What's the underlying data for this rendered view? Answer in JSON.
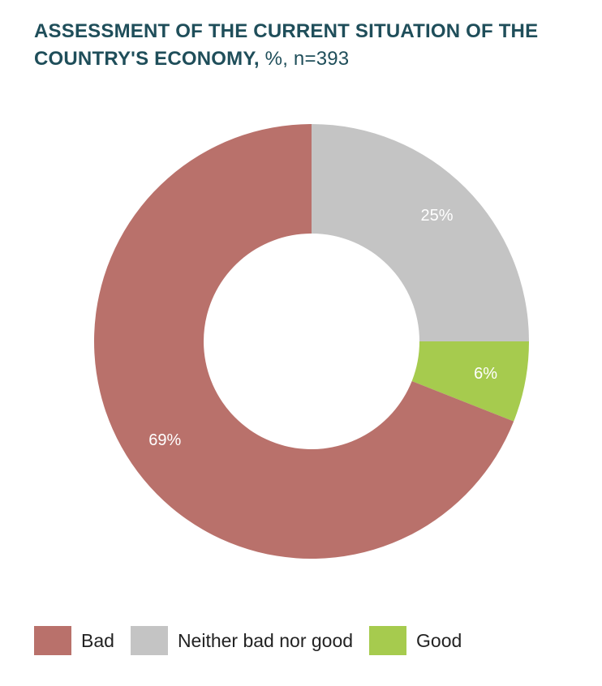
{
  "title": {
    "bold": "ASSESSMENT OF THE CURRENT SITUATION OF THE COUNTRY'S ECONOMY,",
    "rest": " %, n=393"
  },
  "chart_data": {
    "type": "pie",
    "donut": true,
    "title": "ASSESSMENT OF THE CURRENT SITUATION OF THE COUNTRY'S ECONOMY, %, n=393",
    "unit": "%",
    "n": 393,
    "legend_position": "bottom",
    "slices": [
      {
        "name": "Neither bad nor good",
        "value": 25,
        "label": "25%",
        "color": "#c4c4c4"
      },
      {
        "name": "Good",
        "value": 6,
        "label": "6%",
        "color": "#a6cb4e"
      },
      {
        "name": "Bad",
        "value": 69,
        "label": "69%",
        "color": "#b9716b"
      }
    ]
  },
  "legend": {
    "items": [
      {
        "label": "Bad",
        "color": "#b9716b"
      },
      {
        "label": "Neither bad nor good",
        "color": "#c4c4c4"
      },
      {
        "label": "Good",
        "color": "#a6cb4e"
      }
    ]
  }
}
